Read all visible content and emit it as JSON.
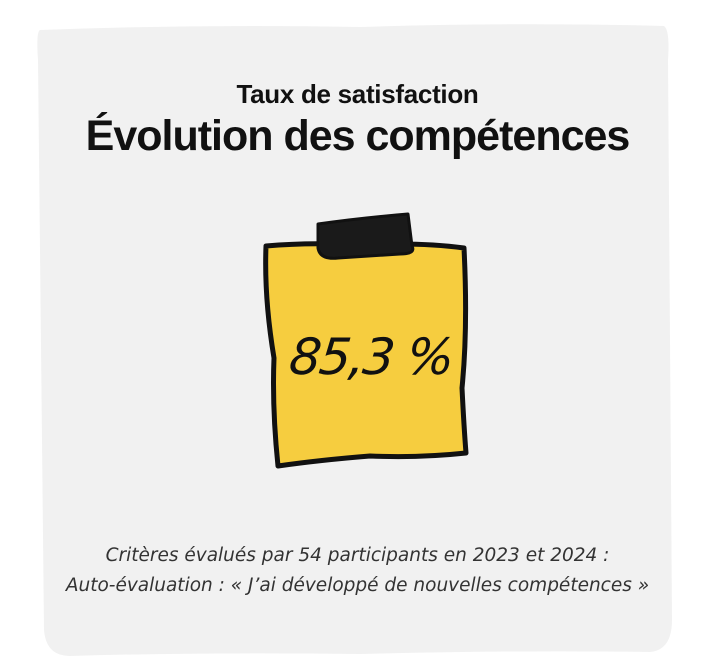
{
  "header": {
    "subtitle": "Taux de satisfaction",
    "title": "Évolution des compétences"
  },
  "note": {
    "value": "85,3 %",
    "fill_color": "#F6CD3F",
    "clip_color": "#1A1A1A"
  },
  "caption": {
    "line1": "Critères évalués par 54 participants en 2023 et 2024 :",
    "line2": "Auto-évaluation : « J’ai développé de nouvelles compétences »"
  },
  "colors": {
    "card_background": "#F1F1F1",
    "text": "#111111",
    "caption_text": "#333333"
  }
}
